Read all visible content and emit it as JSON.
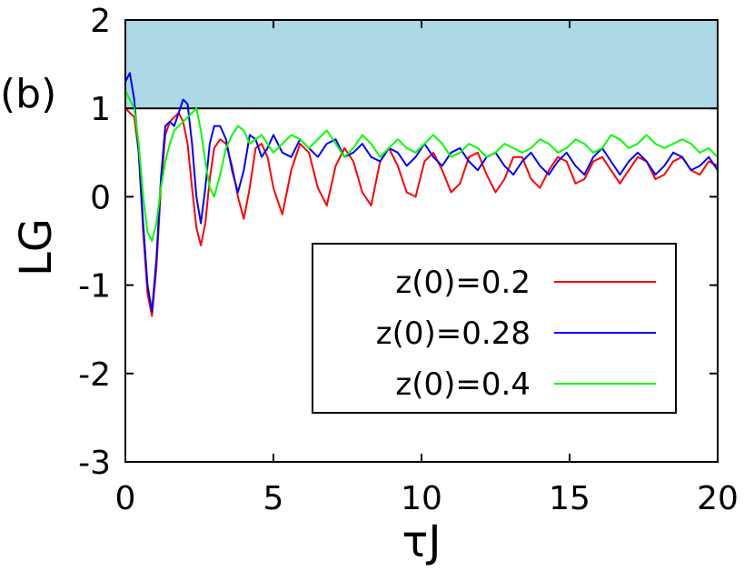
{
  "chart_data": {
    "type": "line",
    "panel_label": "(b)",
    "xlabel": "τJ",
    "ylabel": "LG",
    "xlim": [
      0,
      20
    ],
    "ylim": [
      -3,
      2
    ],
    "xticks": [
      0,
      5,
      10,
      15,
      20
    ],
    "yticks": [
      -3,
      -2,
      -1,
      0,
      1,
      2
    ],
    "grid": false,
    "legend_position": "bottom-right",
    "shaded_region": {
      "y_from": 1,
      "y_to": 2,
      "color": "#add8e6"
    },
    "colors": {
      "axis": "#000000",
      "shade": "#add8e6",
      "shade_edge": "#000000"
    },
    "series": [
      {
        "name": "z(0)=0.2",
        "color": "#ff0000",
        "x": [
          0.0,
          0.15,
          0.3,
          0.45,
          0.6,
          0.75,
          0.9,
          1.05,
          1.2,
          1.35,
          1.5,
          1.65,
          1.8,
          1.95,
          2.1,
          2.25,
          2.4,
          2.55,
          2.7,
          2.85,
          3.0,
          3.2,
          3.4,
          3.6,
          3.8,
          4.0,
          4.2,
          4.4,
          4.6,
          4.8,
          5.0,
          5.3,
          5.6,
          5.9,
          6.2,
          6.5,
          6.8,
          7.1,
          7.4,
          7.7,
          8.0,
          8.3,
          8.6,
          8.9,
          9.2,
          9.5,
          9.8,
          10.1,
          10.4,
          10.7,
          11.0,
          11.3,
          11.6,
          11.9,
          12.2,
          12.5,
          12.8,
          13.1,
          13.4,
          13.7,
          14.0,
          14.3,
          14.6,
          14.9,
          15.2,
          15.5,
          15.8,
          16.1,
          16.4,
          16.7,
          17.0,
          17.3,
          17.6,
          17.9,
          18.2,
          18.5,
          18.8,
          19.1,
          19.4,
          19.7,
          20.0
        ],
        "y": [
          1.0,
          0.95,
          0.9,
          0.5,
          -0.4,
          -1.1,
          -1.35,
          -0.8,
          0.1,
          0.7,
          0.85,
          0.9,
          0.95,
          0.85,
          0.6,
          0.1,
          -0.35,
          -0.55,
          -0.3,
          0.2,
          0.55,
          0.65,
          0.6,
          0.35,
          0.0,
          -0.25,
          0.1,
          0.55,
          0.6,
          0.45,
          0.1,
          -0.2,
          0.3,
          0.6,
          0.5,
          0.1,
          -0.1,
          0.35,
          0.55,
          0.4,
          0.05,
          -0.1,
          0.4,
          0.55,
          0.35,
          0.05,
          0.0,
          0.4,
          0.5,
          0.3,
          0.05,
          0.15,
          0.45,
          0.5,
          0.25,
          0.05,
          0.2,
          0.45,
          0.45,
          0.2,
          0.1,
          0.3,
          0.45,
          0.4,
          0.15,
          0.2,
          0.4,
          0.45,
          0.3,
          0.15,
          0.3,
          0.45,
          0.4,
          0.2,
          0.25,
          0.4,
          0.45,
          0.3,
          0.25,
          0.4,
          0.35
        ]
      },
      {
        "name": "z(0)=0.28",
        "color": "#0000ff",
        "x": [
          0.0,
          0.15,
          0.3,
          0.45,
          0.6,
          0.75,
          0.9,
          1.05,
          1.2,
          1.35,
          1.5,
          1.65,
          1.8,
          1.95,
          2.1,
          2.25,
          2.4,
          2.55,
          2.7,
          2.85,
          3.0,
          3.2,
          3.4,
          3.6,
          3.8,
          4.0,
          4.2,
          4.4,
          4.6,
          4.8,
          5.0,
          5.3,
          5.6,
          5.9,
          6.2,
          6.5,
          6.8,
          7.1,
          7.4,
          7.7,
          8.0,
          8.3,
          8.6,
          8.9,
          9.2,
          9.5,
          9.8,
          10.1,
          10.4,
          10.7,
          11.0,
          11.3,
          11.6,
          11.9,
          12.2,
          12.5,
          12.8,
          13.1,
          13.4,
          13.7,
          14.0,
          14.3,
          14.6,
          14.9,
          15.2,
          15.5,
          15.8,
          16.1,
          16.4,
          16.7,
          17.0,
          17.3,
          17.6,
          17.9,
          18.2,
          18.5,
          18.8,
          19.1,
          19.4,
          19.7,
          20.0
        ],
        "y": [
          1.3,
          1.4,
          1.1,
          0.5,
          -0.3,
          -1.0,
          -1.3,
          -0.7,
          0.2,
          0.8,
          0.85,
          0.8,
          0.95,
          1.1,
          1.05,
          0.6,
          0.0,
          -0.3,
          0.1,
          0.6,
          0.8,
          0.8,
          0.65,
          0.3,
          0.05,
          0.3,
          0.7,
          0.65,
          0.45,
          0.55,
          0.7,
          0.5,
          0.45,
          0.65,
          0.55,
          0.45,
          0.6,
          0.65,
          0.45,
          0.5,
          0.6,
          0.45,
          0.4,
          0.55,
          0.5,
          0.35,
          0.45,
          0.6,
          0.45,
          0.35,
          0.5,
          0.55,
          0.4,
          0.3,
          0.45,
          0.5,
          0.35,
          0.25,
          0.4,
          0.5,
          0.35,
          0.25,
          0.4,
          0.5,
          0.35,
          0.25,
          0.45,
          0.55,
          0.4,
          0.25,
          0.4,
          0.5,
          0.4,
          0.25,
          0.35,
          0.5,
          0.45,
          0.3,
          0.35,
          0.45,
          0.3
        ]
      },
      {
        "name": "z(0)=0.4",
        "color": "#00ff00",
        "x": [
          0.0,
          0.15,
          0.3,
          0.45,
          0.6,
          0.75,
          0.9,
          1.05,
          1.2,
          1.35,
          1.5,
          1.65,
          1.8,
          1.95,
          2.1,
          2.25,
          2.4,
          2.55,
          2.7,
          2.85,
          3.0,
          3.2,
          3.4,
          3.6,
          3.8,
          4.0,
          4.2,
          4.4,
          4.6,
          4.8,
          5.0,
          5.3,
          5.6,
          5.9,
          6.2,
          6.5,
          6.8,
          7.1,
          7.4,
          7.7,
          8.0,
          8.3,
          8.6,
          8.9,
          9.2,
          9.5,
          9.8,
          10.1,
          10.4,
          10.7,
          11.0,
          11.3,
          11.6,
          11.9,
          12.2,
          12.5,
          12.8,
          13.1,
          13.4,
          13.7,
          14.0,
          14.3,
          14.6,
          14.9,
          15.2,
          15.5,
          15.8,
          16.1,
          16.4,
          16.7,
          17.0,
          17.3,
          17.6,
          17.9,
          18.2,
          18.5,
          18.8,
          19.1,
          19.4,
          19.7,
          20.0
        ],
        "y": [
          1.2,
          1.1,
          1.0,
          0.6,
          0.0,
          -0.4,
          -0.5,
          -0.3,
          0.1,
          0.4,
          0.6,
          0.75,
          0.8,
          0.85,
          0.9,
          0.95,
          1.0,
          0.75,
          0.4,
          0.1,
          0.0,
          0.25,
          0.55,
          0.7,
          0.8,
          0.75,
          0.6,
          0.65,
          0.7,
          0.6,
          0.5,
          0.6,
          0.7,
          0.65,
          0.55,
          0.65,
          0.75,
          0.6,
          0.45,
          0.55,
          0.7,
          0.6,
          0.45,
          0.55,
          0.65,
          0.55,
          0.5,
          0.6,
          0.7,
          0.6,
          0.45,
          0.5,
          0.6,
          0.55,
          0.45,
          0.5,
          0.6,
          0.55,
          0.5,
          0.55,
          0.65,
          0.6,
          0.5,
          0.55,
          0.65,
          0.6,
          0.5,
          0.55,
          0.7,
          0.65,
          0.55,
          0.6,
          0.7,
          0.6,
          0.55,
          0.6,
          0.65,
          0.6,
          0.5,
          0.55,
          0.45
        ]
      }
    ]
  }
}
